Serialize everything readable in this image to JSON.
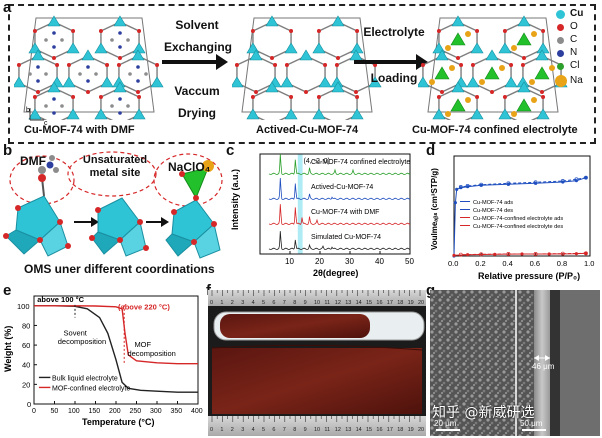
{
  "panel_labels": {
    "a": "a",
    "b": "b",
    "c": "c",
    "d": "d",
    "e": "e",
    "f": "f",
    "g": "g"
  },
  "panel_a": {
    "step1": [
      "Solvent",
      "Exchanging",
      "Vaccum",
      "Drying"
    ],
    "step2": [
      "Electrolyte",
      "Loading"
    ],
    "captions": [
      "Cu-MOF-74 with DMF",
      "Actived-Cu-MOF-74",
      "Cu-MOF-74 confined electrolyte"
    ],
    "legend": [
      "Cu",
      "O",
      "C",
      "N",
      "Cl",
      "Na"
    ],
    "axis_letters": {
      "b": "b",
      "c": "c"
    },
    "colors": {
      "Cu": "#2ec4d6",
      "O": "#d62728",
      "C": "#8c8c8c",
      "N": "#2c3e9e",
      "Cl": "#2ca02c",
      "Na": "#e8a317"
    }
  },
  "panel_b": {
    "labels": [
      "DMF",
      "Unsaturated metal site",
      "NaClO₄"
    ],
    "caption": "OMS uner different coordinations"
  },
  "panel_c": {
    "chart_data": {
      "type": "line",
      "xlabel": "2θ(degree)",
      "ylabel": "Intensity (a.u.)",
      "xlim": [
        0,
        50
      ],
      "xticks": [
        10,
        20,
        30,
        40,
        50
      ],
      "annotation": "(4, -2, 0)",
      "series": [
        {
          "name": "Cu-MOF-74 confined electrolyte",
          "color": "#2ca02c",
          "offset": 3,
          "peaks": [
            [
              6.8,
              0.9
            ],
            [
              11.8,
              0.7
            ],
            [
              16.5,
              0.25
            ],
            [
              25,
              0.15
            ],
            [
              31,
              0.15
            ]
          ]
        },
        {
          "name": "Actived-Cu-MOF-74",
          "color": "#1f4fbf",
          "offset": 2,
          "peaks": [
            [
              6.8,
              0.95
            ],
            [
              11.8,
              0.75
            ],
            [
              16.5,
              0.2
            ],
            [
              24,
              0.1
            ]
          ]
        },
        {
          "name": "Cu-MOF-74 with DMF",
          "color": "#d62728",
          "offset": 1,
          "peaks": [
            [
              6.8,
              0.9
            ],
            [
              11.8,
              0.8
            ],
            [
              14,
              0.3
            ],
            [
              16.5,
              0.3
            ],
            [
              19,
              0.15
            ]
          ]
        },
        {
          "name": "Simulated Cu-MOF-74",
          "color": "#222222",
          "offset": 0,
          "peaks": [
            [
              6.8,
              0.8
            ],
            [
              11.8,
              0.45
            ],
            [
              16.5,
              0.15
            ],
            [
              21,
              0.1
            ],
            [
              24,
              0.1
            ]
          ]
        }
      ]
    }
  },
  "panel_d": {
    "chart_data": {
      "type": "line",
      "xlabel": "Relative pressure (P/P₀)",
      "ylabel": "Voulmeₐᵦₛ (cm³STP/g)",
      "xlim": [
        0,
        1
      ],
      "xticks": [
        0.0,
        0.2,
        0.4,
        0.6,
        0.8,
        1.0
      ],
      "series": [
        {
          "name": "Cu-MOF-74 ads",
          "color": "#1f4fbf",
          "x": [
            0.0,
            0.01,
            0.02,
            0.05,
            0.1,
            0.2,
            0.4,
            0.6,
            0.8,
            0.9,
            0.97
          ],
          "y": [
            0,
            160,
            200,
            205,
            208,
            212,
            215,
            218,
            222,
            226,
            235
          ]
        },
        {
          "name": "Cu-MOF-74 des",
          "color": "#1f4fbf",
          "x": [
            0.97,
            0.9,
            0.8,
            0.6,
            0.4,
            0.2,
            0.1,
            0.05
          ],
          "y": [
            235,
            230,
            225,
            221,
            218,
            214,
            210,
            207
          ]
        },
        {
          "name": "Cu-MOF-74-confined electrolyte ads",
          "color": "#d62728",
          "x": [
            0.0,
            0.1,
            0.3,
            0.5,
            0.7,
            0.9,
            0.97
          ],
          "y": [
            2,
            4,
            5,
            6,
            6,
            7,
            8
          ]
        },
        {
          "name": "Cu-MOF-74-confined electrolyte des",
          "color": "#d62728",
          "x": [
            0.97,
            0.8,
            0.6,
            0.4,
            0.2,
            0.05
          ],
          "y": [
            8,
            7,
            6,
            6,
            5,
            4
          ]
        }
      ]
    }
  },
  "panel_e": {
    "chart_data": {
      "type": "line",
      "xlabel": "Temperature (°C)",
      "ylabel": "Weight (%)",
      "xlim": [
        0,
        400
      ],
      "ylim": [
        0,
        110
      ],
      "xticks": [
        0,
        50,
        100,
        150,
        200,
        250,
        300,
        350,
        400
      ],
      "yticks": [
        0,
        20,
        40,
        60,
        80,
        100
      ],
      "annotations": [
        "above 100 °C",
        "(above 220 °C)",
        "Sovent decomposition",
        "MOF decomposition"
      ],
      "series": [
        {
          "name": "Bulk liquid electrolyte",
          "color": "#222222",
          "x": [
            0,
            50,
            100,
            130,
            160,
            180,
            200,
            215,
            230,
            260,
            300,
            350,
            400
          ],
          "y": [
            100,
            100,
            99.5,
            97,
            88,
            72,
            45,
            22,
            16,
            14,
            13,
            12,
            12
          ]
        },
        {
          "name": "MOF-confined electrolyte",
          "color": "#d62728",
          "x": [
            0,
            50,
            100,
            150,
            200,
            215,
            222,
            230,
            250,
            300,
            350,
            400
          ],
          "y": [
            100,
            100,
            100,
            99.8,
            99,
            97,
            72,
            50,
            44,
            42,
            41,
            41
          ]
        }
      ]
    }
  },
  "panel_f": {
    "ruler_top": [
      "0",
      "1",
      "2",
      "3",
      "4",
      "5",
      "6",
      "7",
      "8",
      "9",
      "10",
      "11",
      "12",
      "13",
      "14",
      "15",
      "16",
      "17",
      "18",
      "19",
      "20"
    ],
    "ruler_bottom": [
      "0",
      "1",
      "2",
      "3",
      "4",
      "5",
      "6",
      "7",
      "8",
      "9",
      "10",
      "11",
      "12",
      "13",
      "14",
      "15",
      "16",
      "17",
      "18",
      "19",
      "20"
    ]
  },
  "panel_g": {
    "scale_left": "20 μm",
    "scale_right": "50 μm",
    "thickness": "46 μm",
    "watermark": "知乎 @新威研选"
  }
}
